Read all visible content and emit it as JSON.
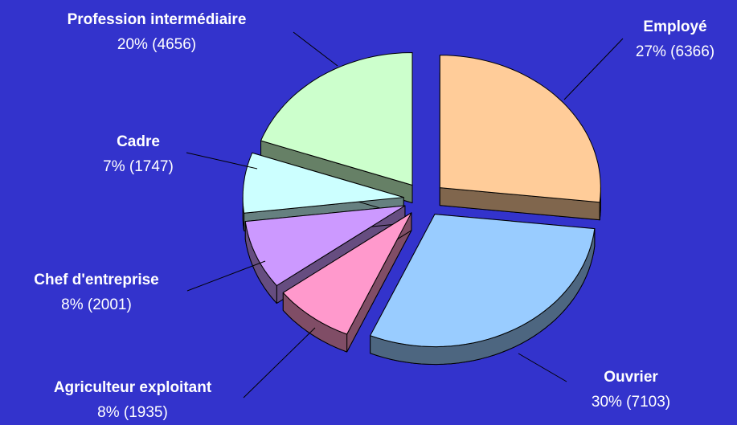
{
  "chart_data": {
    "type": "pie",
    "categories": [
      "Employé",
      "Ouvrier",
      "Agriculteur exploitant",
      "Chef d'entreprise",
      "Cadre",
      "Profession intermédiaire"
    ],
    "values": [
      6366,
      7103,
      1935,
      2001,
      1747,
      4656
    ],
    "value_labels": [
      "27% (6366)",
      "30% (7103)",
      "8% (1935)",
      "8% (2001)",
      "7% (1747)",
      "20% (4656)"
    ],
    "colors": [
      "#ffcc99",
      "#99ccff",
      "#ff99cc",
      "#cc99ff",
      "#ccffff",
      "#ccffcc"
    ],
    "background": "#3333cc"
  }
}
